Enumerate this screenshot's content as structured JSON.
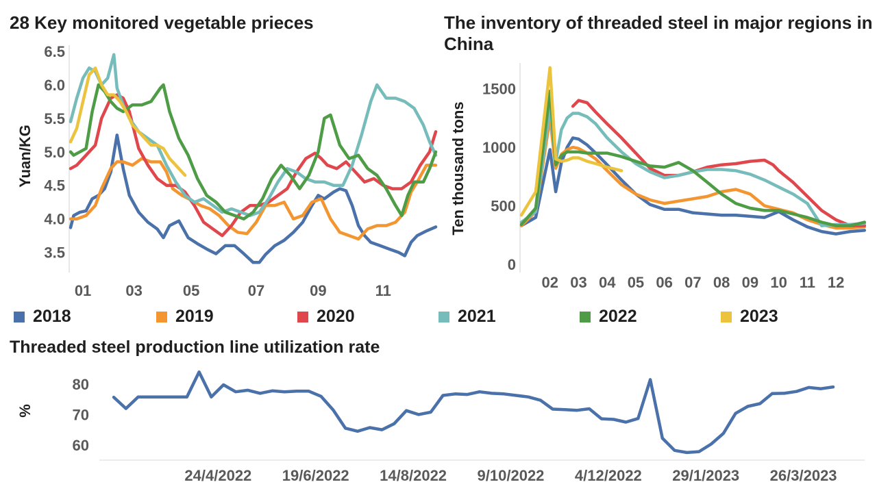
{
  "colors": {
    "2018": "#4a71a9",
    "2019": "#f39632",
    "2020": "#e0474c",
    "2021": "#76bcbb",
    "2022": "#4e9c45",
    "2023": "#ecc33f",
    "utilization": "#4a71a9"
  },
  "chart_data": [
    {
      "type": "line",
      "title": "28 Key monitored vegetable prieces",
      "xlabel": "",
      "ylabel": "Yuan/KG",
      "x_ticks": [
        "01",
        "03",
        "05",
        "07",
        "09",
        "11"
      ],
      "x_range": [
        1,
        12.8
      ],
      "y_ticks": [
        "6.5",
        "6.0",
        "5.5",
        "5.0",
        "4.5",
        "4.0",
        "3.5"
      ],
      "y_range": [
        3.2,
        6.55
      ],
      "grid": false,
      "legend": "bottom",
      "series": [
        {
          "name": "2018",
          "x": [
            1.0,
            1.1,
            1.3,
            1.5,
            1.7,
            1.9,
            2.1,
            2.3,
            2.5,
            2.7,
            2.9,
            3.2,
            3.5,
            3.8,
            4.0,
            4.2,
            4.5,
            4.8,
            5.1,
            5.4,
            5.7,
            6.0,
            6.3,
            6.6,
            6.9,
            7.1,
            7.3,
            7.6,
            7.9,
            8.2,
            8.5,
            8.8,
            9.0,
            9.2,
            9.5,
            9.7,
            9.9,
            10.1,
            10.3,
            10.5,
            10.7,
            11.0,
            11.3,
            11.6,
            11.8,
            12.0,
            12.2,
            12.5,
            12.8
          ],
          "values": [
            3.87,
            4.05,
            4.1,
            4.12,
            4.3,
            4.35,
            4.45,
            4.7,
            5.25,
            4.75,
            4.35,
            4.1,
            3.95,
            3.85,
            3.72,
            3.9,
            3.97,
            3.72,
            3.63,
            3.55,
            3.48,
            3.6,
            3.6,
            3.48,
            3.35,
            3.35,
            3.47,
            3.6,
            3.68,
            3.8,
            3.95,
            4.2,
            4.35,
            4.3,
            4.4,
            4.45,
            4.42,
            4.2,
            3.9,
            3.75,
            3.65,
            3.6,
            3.55,
            3.5,
            3.45,
            3.65,
            3.75,
            3.82,
            3.88
          ]
        },
        {
          "name": "2019",
          "x": [
            1.0,
            1.2,
            1.5,
            1.8,
            2.0,
            2.3,
            2.5,
            2.7,
            3.0,
            3.3,
            3.6,
            3.9,
            4.1,
            4.3,
            4.6,
            4.9,
            5.2,
            5.5,
            5.8,
            6.1,
            6.4,
            6.7,
            7.0,
            7.3,
            7.6,
            7.9,
            8.2,
            8.5,
            8.8,
            9.1,
            9.4,
            9.7,
            10.0,
            10.3,
            10.6,
            10.9,
            11.2,
            11.5,
            11.8,
            12.0,
            12.2,
            12.5,
            12.8
          ],
          "values": [
            4.0,
            4.0,
            4.05,
            4.2,
            4.45,
            4.75,
            4.85,
            4.85,
            4.8,
            4.9,
            4.85,
            4.85,
            4.7,
            4.45,
            4.35,
            4.28,
            4.2,
            4.15,
            4.05,
            3.9,
            3.8,
            3.78,
            3.95,
            4.2,
            4.2,
            4.25,
            4.0,
            4.05,
            4.25,
            4.3,
            4.0,
            3.8,
            3.75,
            3.7,
            3.85,
            3.9,
            3.9,
            3.95,
            4.1,
            4.4,
            4.55,
            4.8,
            4.8
          ]
        },
        {
          "name": "2020",
          "x": [
            1.0,
            1.2,
            1.5,
            1.8,
            2.0,
            2.3,
            2.5,
            2.7,
            2.9,
            3.2,
            3.5,
            3.8,
            4.1,
            4.4,
            4.7,
            5.0,
            5.3,
            5.6,
            5.9,
            6.2,
            6.5,
            6.8,
            7.1,
            7.4,
            7.7,
            8.0,
            8.3,
            8.6,
            8.9,
            9.1,
            9.3,
            9.6,
            9.9,
            10.2,
            10.5,
            10.8,
            11.1,
            11.4,
            11.7,
            12.0,
            12.3,
            12.6,
            12.8
          ],
          "values": [
            4.75,
            4.8,
            4.95,
            5.1,
            5.5,
            5.8,
            5.85,
            5.8,
            5.6,
            5.05,
            4.8,
            4.6,
            4.5,
            4.5,
            4.4,
            4.2,
            3.95,
            3.85,
            3.75,
            3.9,
            4.1,
            4.2,
            4.2,
            4.25,
            4.35,
            4.45,
            4.7,
            4.9,
            4.98,
            4.9,
            4.8,
            4.75,
            4.85,
            4.7,
            4.55,
            4.6,
            4.5,
            4.45,
            4.45,
            4.55,
            4.8,
            5.0,
            5.3
          ]
        },
        {
          "name": "2021",
          "x": [
            1.0,
            1.2,
            1.4,
            1.6,
            1.8,
            2.0,
            2.2,
            2.4,
            2.5,
            2.7,
            2.9,
            3.2,
            3.5,
            3.8,
            4.1,
            4.4,
            4.7,
            5.0,
            5.3,
            5.6,
            5.9,
            6.2,
            6.5,
            6.8,
            7.1,
            7.4,
            7.7,
            8.0,
            8.3,
            8.6,
            8.9,
            9.2,
            9.5,
            9.8,
            10.1,
            10.4,
            10.7,
            10.9,
            11.2,
            11.5,
            11.8,
            12.1,
            12.4,
            12.6,
            12.8
          ],
          "values": [
            5.45,
            5.8,
            6.1,
            6.25,
            6.2,
            6.0,
            6.1,
            6.45,
            5.95,
            5.7,
            5.5,
            5.3,
            5.2,
            5.1,
            4.8,
            4.55,
            4.35,
            4.25,
            4.3,
            4.2,
            4.1,
            4.15,
            4.1,
            4.05,
            4.1,
            4.3,
            4.55,
            4.75,
            4.7,
            4.6,
            4.55,
            4.55,
            4.5,
            4.5,
            4.8,
            5.25,
            5.75,
            6.0,
            5.8,
            5.8,
            5.75,
            5.65,
            5.4,
            5.15,
            4.95
          ]
        },
        {
          "name": "2022",
          "x": [
            1.0,
            1.1,
            1.3,
            1.5,
            1.7,
            1.9,
            2.1,
            2.3,
            2.5,
            2.7,
            3.0,
            3.3,
            3.6,
            3.9,
            4.0,
            4.2,
            4.5,
            4.8,
            5.1,
            5.4,
            5.7,
            6.0,
            6.3,
            6.6,
            6.9,
            7.2,
            7.5,
            7.8,
            8.1,
            8.4,
            8.7,
            9.0,
            9.2,
            9.4,
            9.7,
            10.0,
            10.3,
            10.6,
            10.9,
            11.2,
            11.5,
            11.7,
            11.9,
            12.1,
            12.4,
            12.6,
            12.8
          ],
          "values": [
            5.0,
            4.95,
            5.0,
            5.05,
            5.6,
            6.0,
            5.9,
            5.75,
            5.65,
            5.6,
            5.7,
            5.7,
            5.75,
            5.95,
            6.0,
            5.6,
            5.2,
            4.95,
            4.6,
            4.35,
            4.25,
            4.1,
            4.05,
            4.0,
            4.1,
            4.3,
            4.6,
            4.8,
            4.65,
            4.45,
            4.65,
            5.0,
            5.5,
            5.55,
            5.1,
            4.9,
            4.95,
            4.75,
            4.65,
            4.45,
            4.2,
            4.05,
            4.35,
            4.55,
            4.55,
            4.75,
            5.0
          ]
        },
        {
          "name": "2023",
          "x": [
            1.0,
            1.2,
            1.4,
            1.6,
            1.8,
            2.0,
            2.2,
            2.4,
            2.6,
            2.8,
            3.0,
            3.2,
            3.4,
            3.6,
            3.8,
            4.0,
            4.2,
            4.4,
            4.6,
            4.7
          ],
          "values": [
            5.15,
            5.35,
            5.75,
            6.15,
            6.25,
            6.0,
            5.85,
            5.85,
            5.75,
            5.6,
            5.4,
            5.3,
            5.2,
            5.1,
            5.1,
            5.05,
            4.9,
            4.8,
            4.7,
            4.65
          ]
        }
      ]
    },
    {
      "type": "line",
      "title": "The inventory of threaded steel in major regions in China",
      "xlabel": "",
      "ylabel": "Ten thousand tons",
      "x_ticks": [
        "02",
        "03",
        "04",
        "05",
        "06",
        "07",
        "08",
        "09",
        "10",
        "11",
        "12"
      ],
      "x_range": [
        1,
        13.1
      ],
      "y_ticks": [
        "1500",
        "1000",
        "500",
        "0"
      ],
      "y_range": [
        0,
        1720
      ],
      "grid": false,
      "legend": "bottom",
      "series": [
        {
          "name": "2018",
          "x": [
            1.0,
            1.5,
            2.0,
            2.2,
            2.4,
            2.6,
            2.8,
            3.0,
            3.3,
            3.6,
            4.0,
            4.5,
            5.0,
            5.5,
            6.0,
            6.5,
            7.0,
            7.5,
            8.0,
            8.5,
            9.0,
            9.5,
            10.0,
            10.5,
            11.0,
            11.5,
            12.0,
            12.5,
            13.0
          ],
          "values": [
            330,
            400,
            980,
            620,
            870,
            1000,
            1080,
            1070,
            1020,
            950,
            850,
            720,
            600,
            510,
            470,
            470,
            440,
            430,
            420,
            420,
            410,
            400,
            450,
            380,
            320,
            280,
            260,
            280,
            290
          ]
        },
        {
          "name": "2019",
          "x": [
            1.0,
            1.5,
            2.0,
            2.2,
            2.4,
            2.6,
            2.8,
            3.0,
            3.3,
            3.6,
            4.0,
            4.5,
            5.0,
            5.5,
            6.0,
            6.5,
            7.0,
            7.5,
            8.0,
            8.5,
            9.0,
            9.5,
            10.0,
            10.5,
            11.0,
            11.5,
            12.0,
            12.5,
            13.0
          ],
          "values": [
            330,
            450,
            1250,
            820,
            940,
            980,
            1000,
            990,
            950,
            900,
            800,
            680,
            600,
            550,
            520,
            540,
            560,
            580,
            620,
            640,
            600,
            500,
            470,
            440,
            380,
            340,
            310,
            310,
            320
          ]
        },
        {
          "name": "2020",
          "x": [
            2.8,
            3.0,
            3.3,
            3.6,
            4.0,
            4.5,
            5.0,
            5.5,
            6.0,
            6.5,
            7.0,
            7.5,
            8.0,
            8.5,
            9.0,
            9.5,
            9.8,
            10.0,
            10.5,
            11.0,
            11.5,
            12.0,
            12.5,
            13.0
          ],
          "values": [
            1350,
            1400,
            1380,
            1300,
            1200,
            1080,
            950,
            820,
            760,
            760,
            790,
            830,
            850,
            860,
            880,
            890,
            850,
            800,
            700,
            580,
            460,
            380,
            330,
            330
          ]
        },
        {
          "name": "2021",
          "x": [
            1.0,
            1.5,
            2.0,
            2.2,
            2.4,
            2.6,
            2.8,
            3.0,
            3.3,
            3.6,
            4.0,
            4.5,
            5.0,
            5.5,
            6.0,
            6.5,
            7.0,
            7.5,
            8.0,
            8.5,
            9.0,
            9.5,
            10.0,
            10.5,
            11.0,
            11.5,
            12.0,
            12.5,
            13.0
          ],
          "values": [
            360,
            450,
            1340,
            880,
            1150,
            1250,
            1290,
            1290,
            1260,
            1200,
            1080,
            960,
            860,
            790,
            740,
            760,
            790,
            810,
            810,
            800,
            770,
            720,
            660,
            600,
            520,
            330,
            340,
            340,
            350
          ]
        },
        {
          "name": "2022",
          "x": [
            1.0,
            1.5,
            2.0,
            2.2,
            2.4,
            2.6,
            2.8,
            3.0,
            3.3,
            3.6,
            4.0,
            4.5,
            5.0,
            5.5,
            6.0,
            6.5,
            7.0,
            7.5,
            8.0,
            8.5,
            9.0,
            9.5,
            10.0,
            10.5,
            11.0,
            11.5,
            12.0,
            12.5,
            13.0
          ],
          "values": [
            340,
            480,
            1480,
            850,
            930,
            960,
            960,
            960,
            950,
            950,
            950,
            920,
            880,
            840,
            830,
            870,
            800,
            700,
            600,
            520,
            480,
            460,
            460,
            430,
            400,
            360,
            330,
            330,
            360
          ]
        },
        {
          "name": "2023",
          "x": [
            1.0,
            1.5,
            2.0,
            2.2,
            2.4,
            2.6,
            2.8,
            3.0,
            3.3,
            3.6,
            4.0,
            4.5
          ],
          "values": [
            420,
            620,
            1680,
            900,
            880,
            890,
            910,
            910,
            880,
            860,
            830,
            800
          ]
        }
      ]
    },
    {
      "type": "line",
      "title": "Threaded steel production line utilization rate",
      "xlabel": "",
      "ylabel": "%",
      "x_ticks": [
        "24/4/2022",
        "19/6/2022",
        "14/8/2022",
        "9/10/2022",
        "4/12/2022",
        "29/1/2023",
        "26/3/2023"
      ],
      "y_ticks": [
        "80",
        "70",
        "60"
      ],
      "y_range": [
        55,
        87
      ],
      "grid": false,
      "series": [
        {
          "name": "",
          "values": [
            75.7,
            72,
            75.8,
            75.8,
            75.8,
            75.8,
            75.8,
            84,
            75.8,
            79.8,
            77.5,
            78,
            77,
            77.8,
            77.5,
            77.7,
            77.7,
            76,
            71.5,
            65.5,
            64.5,
            65.7,
            65,
            67,
            71.3,
            70,
            70.8,
            76.3,
            76.8,
            76.6,
            77.5,
            77,
            76.8,
            76.3,
            75.8,
            74.7,
            71.8,
            71.6,
            71.4,
            71.9,
            68.6,
            68.4,
            67.5,
            68.7,
            81.5,
            62.2,
            58.2,
            57.5,
            57.8,
            60.3,
            63.8,
            70.4,
            72.7,
            73.6,
            76.9,
            77,
            77.6,
            78.9,
            78.5,
            79.1
          ]
        }
      ]
    }
  ]
}
